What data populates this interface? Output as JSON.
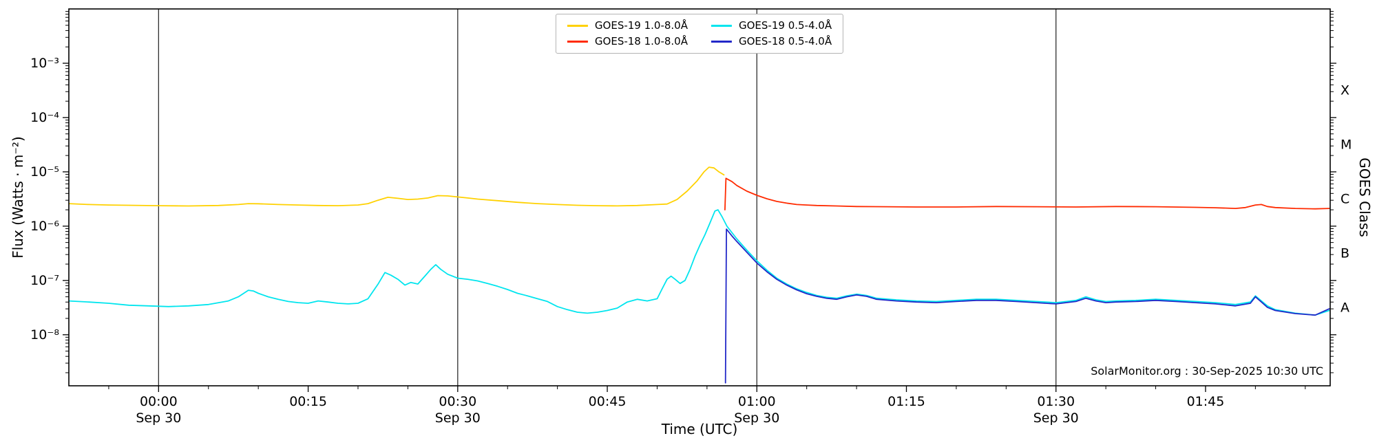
{
  "annotation": {
    "text": "SolarMonitor.org : 30-Sep-2025 10:30 UTC"
  },
  "chart_data": {
    "type": "line",
    "title": "",
    "xlabel": "Time (UTC)",
    "ylabel": "Flux (Watts · m⁻²)",
    "right_ylabel": "GOES Class",
    "x_unit": "minutes since 2025-09-30 00:00 UTC",
    "xlim": [
      -9,
      117.5
    ],
    "ylim_exp": [
      -8.94,
      -2
    ],
    "grid_on": true,
    "legend_position": "top-center",
    "grid_times": [
      0,
      30,
      60,
      90
    ],
    "x_ticks": [
      {
        "t": 0,
        "label": "00:00",
        "date": "Sep 30"
      },
      {
        "t": 15,
        "label": "00:15"
      },
      {
        "t": 30,
        "label": "00:30",
        "date": "Sep 30"
      },
      {
        "t": 45,
        "label": "00:45"
      },
      {
        "t": 60,
        "label": "01:00",
        "date": "Sep 30"
      },
      {
        "t": 75,
        "label": "01:15"
      },
      {
        "t": 90,
        "label": "01:30",
        "date": "Sep 30"
      },
      {
        "t": 105,
        "label": "01:45"
      }
    ],
    "y_ticks": [
      {
        "exp": -3,
        "label": "10⁻³"
      },
      {
        "exp": -4,
        "label": "10⁻⁴"
      },
      {
        "exp": -5,
        "label": "10⁻⁵"
      },
      {
        "exp": -6,
        "label": "10⁻⁶"
      },
      {
        "exp": -7,
        "label": "10⁻⁷"
      },
      {
        "exp": -8,
        "label": "10⁻⁸"
      }
    ],
    "class_labels": [
      {
        "label": "X",
        "exp": -3.5
      },
      {
        "label": "M",
        "exp": -4.5
      },
      {
        "label": "C",
        "exp": -5.5
      },
      {
        "label": "B",
        "exp": -6.5
      },
      {
        "label": "A",
        "exp": -7.5
      }
    ],
    "series": [
      {
        "name": "GOES-19 1.0-8.0Å",
        "color": "#ffd100",
        "points": [
          [
            -9,
            2.6e-06
          ],
          [
            -7,
            2.5e-06
          ],
          [
            -5,
            2.45e-06
          ],
          [
            -3,
            2.42e-06
          ],
          [
            0,
            2.38e-06
          ],
          [
            3,
            2.35e-06
          ],
          [
            6,
            2.4e-06
          ],
          [
            8,
            2.5e-06
          ],
          [
            9,
            2.6e-06
          ],
          [
            10,
            2.58e-06
          ],
          [
            12,
            2.5e-06
          ],
          [
            14,
            2.45e-06
          ],
          [
            16,
            2.4e-06
          ],
          [
            18,
            2.38e-06
          ],
          [
            20,
            2.45e-06
          ],
          [
            21,
            2.6e-06
          ],
          [
            22,
            3e-06
          ],
          [
            23,
            3.4e-06
          ],
          [
            24,
            3.25e-06
          ],
          [
            25,
            3.1e-06
          ],
          [
            26,
            3.15e-06
          ],
          [
            27,
            3.3e-06
          ],
          [
            28,
            3.65e-06
          ],
          [
            29,
            3.6e-06
          ],
          [
            30,
            3.45e-06
          ],
          [
            31,
            3.3e-06
          ],
          [
            32,
            3.15e-06
          ],
          [
            34,
            2.95e-06
          ],
          [
            36,
            2.75e-06
          ],
          [
            38,
            2.6e-06
          ],
          [
            40,
            2.5e-06
          ],
          [
            42,
            2.42e-06
          ],
          [
            44,
            2.38e-06
          ],
          [
            46,
            2.36e-06
          ],
          [
            48,
            2.4e-06
          ],
          [
            50,
            2.5e-06
          ],
          [
            51,
            2.55e-06
          ],
          [
            52,
            3.1e-06
          ],
          [
            53,
            4.4e-06
          ],
          [
            54,
            6.8e-06
          ],
          [
            54.7,
            1e-05
          ],
          [
            55.2,
            1.22e-05
          ],
          [
            55.7,
            1.18e-05
          ],
          [
            56.2,
            1e-05
          ],
          [
            56.7,
            8.8e-06
          ]
        ]
      },
      {
        "name": "GOES-18 1.0-8.0Å",
        "color": "#ff2a00",
        "points": [
          [
            56.8,
            2e-06
          ],
          [
            56.9,
            7.6e-06
          ],
          [
            57.5,
            6.6e-06
          ],
          [
            58,
            5.6e-06
          ],
          [
            59,
            4.4e-06
          ],
          [
            60,
            3.7e-06
          ],
          [
            61,
            3.2e-06
          ],
          [
            62,
            2.85e-06
          ],
          [
            63,
            2.65e-06
          ],
          [
            64,
            2.5e-06
          ],
          [
            65,
            2.45e-06
          ],
          [
            66,
            2.4e-06
          ],
          [
            68,
            2.35e-06
          ],
          [
            70,
            2.3e-06
          ],
          [
            73,
            2.28e-06
          ],
          [
            76,
            2.25e-06
          ],
          [
            80,
            2.25e-06
          ],
          [
            84,
            2.3e-06
          ],
          [
            88,
            2.28e-06
          ],
          [
            92,
            2.25e-06
          ],
          [
            96,
            2.3e-06
          ],
          [
            100,
            2.28e-06
          ],
          [
            104,
            2.22e-06
          ],
          [
            106,
            2.18e-06
          ],
          [
            108,
            2.12e-06
          ],
          [
            109,
            2.2e-06
          ],
          [
            110,
            2.45e-06
          ],
          [
            110.6,
            2.5e-06
          ],
          [
            111.2,
            2.3e-06
          ],
          [
            112,
            2.2e-06
          ],
          [
            114,
            2.12e-06
          ],
          [
            116,
            2.08e-06
          ],
          [
            117.4,
            2.12e-06
          ]
        ]
      },
      {
        "name": "GOES-19 0.5-4.0Å",
        "color": "#00e5ee",
        "points": [
          [
            -9,
            4.2e-08
          ],
          [
            -7,
            4e-08
          ],
          [
            -5,
            3.8e-08
          ],
          [
            -3,
            3.5e-08
          ],
          [
            -1,
            3.4e-08
          ],
          [
            1,
            3.3e-08
          ],
          [
            3,
            3.4e-08
          ],
          [
            5,
            3.6e-08
          ],
          [
            7,
            4.2e-08
          ],
          [
            8,
            5e-08
          ],
          [
            9,
            6.6e-08
          ],
          [
            9.5,
            6.4e-08
          ],
          [
            10,
            5.8e-08
          ],
          [
            11,
            5e-08
          ],
          [
            12,
            4.5e-08
          ],
          [
            13,
            4.1e-08
          ],
          [
            14,
            3.9e-08
          ],
          [
            15,
            3.8e-08
          ],
          [
            16,
            4.2e-08
          ],
          [
            17,
            4e-08
          ],
          [
            18,
            3.8e-08
          ],
          [
            19,
            3.7e-08
          ],
          [
            20,
            3.8e-08
          ],
          [
            21,
            4.6e-08
          ],
          [
            22,
            8.5e-08
          ],
          [
            22.7,
            1.4e-07
          ],
          [
            23.3,
            1.25e-07
          ],
          [
            24,
            1.05e-07
          ],
          [
            24.7,
            8.2e-08
          ],
          [
            25.3,
            9.2e-08
          ],
          [
            26,
            8.6e-08
          ],
          [
            26.7,
            1.2e-07
          ],
          [
            27.3,
            1.6e-07
          ],
          [
            27.8,
            1.95e-07
          ],
          [
            28.3,
            1.6e-07
          ],
          [
            29,
            1.3e-07
          ],
          [
            30,
            1.1e-07
          ],
          [
            31,
            1.05e-07
          ],
          [
            32,
            9.8e-08
          ],
          [
            33,
            8.8e-08
          ],
          [
            34,
            7.8e-08
          ],
          [
            35,
            6.8e-08
          ],
          [
            36,
            5.8e-08
          ],
          [
            37,
            5.2e-08
          ],
          [
            38,
            4.6e-08
          ],
          [
            39,
            4.1e-08
          ],
          [
            40,
            3.3e-08
          ],
          [
            41,
            2.9e-08
          ],
          [
            42,
            2.6e-08
          ],
          [
            43,
            2.5e-08
          ],
          [
            44,
            2.6e-08
          ],
          [
            45,
            2.8e-08
          ],
          [
            46,
            3.1e-08
          ],
          [
            47,
            4e-08
          ],
          [
            48,
            4.5e-08
          ],
          [
            49,
            4.2e-08
          ],
          [
            50,
            4.6e-08
          ],
          [
            50.5,
            7e-08
          ],
          [
            51,
            1.05e-07
          ],
          [
            51.4,
            1.2e-07
          ],
          [
            51.8,
            1.05e-07
          ],
          [
            52.3,
            8.8e-08
          ],
          [
            52.8,
            1e-07
          ],
          [
            53.3,
            1.6e-07
          ],
          [
            53.8,
            2.8e-07
          ],
          [
            54.3,
            4.5e-07
          ],
          [
            54.8,
            7e-07
          ],
          [
            55.3,
            1.15e-06
          ],
          [
            55.8,
            1.9e-06
          ],
          [
            56.1,
            2e-06
          ],
          [
            56.5,
            1.5e-06
          ],
          [
            57,
            1e-06
          ],
          [
            58,
            5.8e-07
          ],
          [
            59,
            3.6e-07
          ],
          [
            60,
            2.3e-07
          ],
          [
            61,
            1.55e-07
          ],
          [
            62,
            1.1e-07
          ],
          [
            63,
            8.6e-08
          ],
          [
            64,
            7e-08
          ],
          [
            65,
            6e-08
          ],
          [
            66,
            5.3e-08
          ],
          [
            67,
            4.9e-08
          ],
          [
            68,
            4.7e-08
          ],
          [
            69,
            5.2e-08
          ],
          [
            70,
            5.6e-08
          ],
          [
            71,
            5.3e-08
          ],
          [
            72,
            4.7e-08
          ],
          [
            74,
            4.4e-08
          ],
          [
            76,
            4.2e-08
          ],
          [
            78,
            4.1e-08
          ],
          [
            80,
            4.3e-08
          ],
          [
            82,
            4.5e-08
          ],
          [
            84,
            4.5e-08
          ],
          [
            86,
            4.3e-08
          ],
          [
            88,
            4.1e-08
          ],
          [
            90,
            3.9e-08
          ],
          [
            92,
            4.3e-08
          ],
          [
            93,
            5e-08
          ],
          [
            94,
            4.4e-08
          ],
          [
            95,
            4.1e-08
          ],
          [
            96,
            4.2e-08
          ],
          [
            98,
            4.3e-08
          ],
          [
            100,
            4.5e-08
          ],
          [
            102,
            4.3e-08
          ],
          [
            104,
            4.1e-08
          ],
          [
            106,
            3.9e-08
          ],
          [
            108,
            3.6e-08
          ],
          [
            109.5,
            4e-08
          ],
          [
            110,
            5.2e-08
          ],
          [
            110.6,
            4.2e-08
          ],
          [
            111.2,
            3.4e-08
          ],
          [
            112,
            2.9e-08
          ],
          [
            114,
            2.5e-08
          ],
          [
            116,
            2.3e-08
          ],
          [
            117.4,
            2.8e-08
          ]
        ]
      },
      {
        "name": "GOES-18 0.5-4.0Å",
        "color": "#2228c8",
        "points": [
          [
            56.85,
            1.3e-09
          ],
          [
            56.95,
            8.8e-07
          ],
          [
            57.5,
            6.6e-07
          ],
          [
            58,
            5.2e-07
          ],
          [
            59,
            3.3e-07
          ],
          [
            60,
            2.1e-07
          ],
          [
            61,
            1.45e-07
          ],
          [
            62,
            1.05e-07
          ],
          [
            63,
            8.2e-08
          ],
          [
            64,
            6.7e-08
          ],
          [
            65,
            5.7e-08
          ],
          [
            66,
            5.1e-08
          ],
          [
            67,
            4.7e-08
          ],
          [
            68,
            4.5e-08
          ],
          [
            69,
            5e-08
          ],
          [
            70,
            5.4e-08
          ],
          [
            71,
            5.1e-08
          ],
          [
            72,
            4.5e-08
          ],
          [
            74,
            4.2e-08
          ],
          [
            76,
            4e-08
          ],
          [
            78,
            3.9e-08
          ],
          [
            80,
            4.1e-08
          ],
          [
            82,
            4.3e-08
          ],
          [
            84,
            4.3e-08
          ],
          [
            86,
            4.1e-08
          ],
          [
            88,
            3.9e-08
          ],
          [
            90,
            3.7e-08
          ],
          [
            92,
            4.1e-08
          ],
          [
            93,
            4.7e-08
          ],
          [
            94,
            4.2e-08
          ],
          [
            95,
            3.9e-08
          ],
          [
            96,
            4e-08
          ],
          [
            98,
            4.1e-08
          ],
          [
            100,
            4.3e-08
          ],
          [
            102,
            4.1e-08
          ],
          [
            104,
            3.9e-08
          ],
          [
            106,
            3.7e-08
          ],
          [
            108,
            3.4e-08
          ],
          [
            109.5,
            3.8e-08
          ],
          [
            110,
            5e-08
          ],
          [
            110.6,
            4e-08
          ],
          [
            111.2,
            3.2e-08
          ],
          [
            112,
            2.8e-08
          ],
          [
            114,
            2.45e-08
          ],
          [
            116,
            2.3e-08
          ],
          [
            117.4,
            3e-08
          ]
        ]
      }
    ]
  }
}
